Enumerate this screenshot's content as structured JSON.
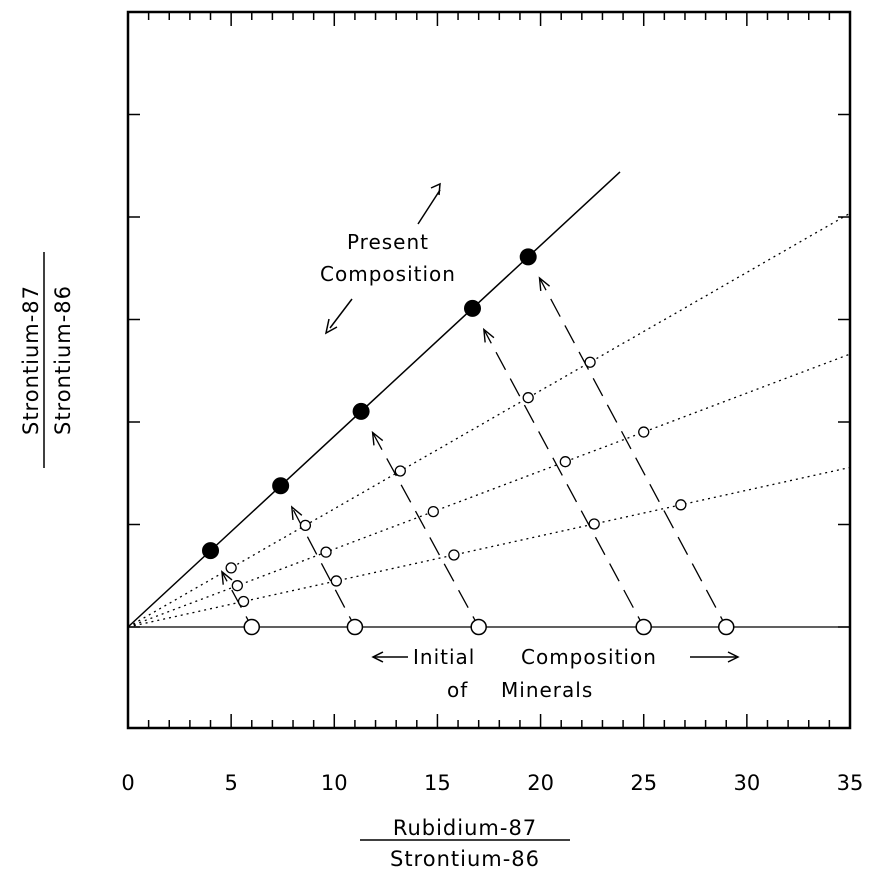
{
  "chart_data": {
    "type": "scatter",
    "title": "",
    "xlabel": {
      "numerator": "Rubidium-87",
      "denominator": "Strontium-86"
    },
    "ylabel": {
      "numerator": "Strontium-87",
      "denominator": "Strontium-86"
    },
    "xlim": [
      0,
      35
    ],
    "x_ticks": [
      0,
      5,
      10,
      15,
      20,
      25,
      30,
      35
    ],
    "x_tick_labels": [
      "0",
      "5",
      "10",
      "15",
      "20",
      "25",
      "30",
      "35"
    ],
    "x_minor_step": 1,
    "y_tick_count": 6,
    "grid": false,
    "series": [
      {
        "role": "initial",
        "marker": "open-large",
        "x": [
          6,
          11,
          17,
          25,
          29
        ]
      },
      {
        "role": "intermediate",
        "marker": "open-small",
        "x": [
          5.0,
          5.3,
          5.6,
          8.6,
          9.6,
          10.1,
          13.2,
          14.8,
          15.8,
          19.4,
          21.2,
          22.6,
          22.4,
          25.0,
          26.8
        ]
      },
      {
        "role": "present",
        "marker": "filled",
        "x": [
          4,
          7.4,
          11.3,
          16.7,
          19.4
        ]
      }
    ],
    "annotations": {
      "present": [
        "Present",
        "Composition"
      ],
      "initial": [
        "Initial",
        "Composition",
        "of",
        "Minerals"
      ]
    }
  }
}
